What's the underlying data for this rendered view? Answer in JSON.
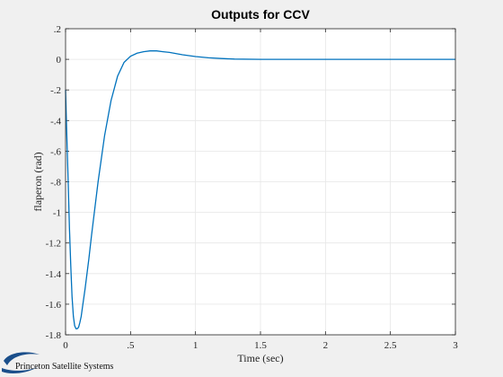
{
  "chart_data": {
    "type": "line",
    "title": "Outputs for CCV",
    "xlabel": "Time (sec)",
    "ylabel": "flaperon (rad)",
    "xlim": [
      0,
      3
    ],
    "ylim": [
      -1.8,
      0.2
    ],
    "xticks": [
      0,
      0.5,
      1,
      1.5,
      2,
      2.5,
      3
    ],
    "yticks": [
      -1.8,
      -1.6,
      -1.4,
      -1.2,
      -1,
      -0.8,
      -0.6,
      -0.4,
      -0.2,
      0,
      0.2
    ],
    "grid": true,
    "series": [
      {
        "color": "#0072bd",
        "x": [
          0,
          0.01,
          0.02,
          0.03,
          0.04,
          0.05,
          0.06,
          0.07,
          0.08,
          0.09,
          0.1,
          0.11,
          0.12,
          0.13,
          0.15,
          0.18,
          0.2,
          0.25,
          0.3,
          0.35,
          0.4,
          0.45,
          0.5,
          0.55,
          0.6,
          0.65,
          0.7,
          0.75,
          0.8,
          0.9,
          1.0,
          1.1,
          1.2,
          1.3,
          1.5,
          1.75,
          2.0,
          2.5,
          3.0
        ],
        "y": [
          -0.2,
          -0.5,
          -0.8,
          -1.1,
          -1.35,
          -1.55,
          -1.68,
          -1.74,
          -1.76,
          -1.76,
          -1.75,
          -1.72,
          -1.68,
          -1.62,
          -1.5,
          -1.3,
          -1.15,
          -0.8,
          -0.5,
          -0.27,
          -0.11,
          -0.02,
          0.02,
          0.04,
          0.05,
          0.055,
          0.055,
          0.05,
          0.045,
          0.03,
          0.018,
          0.01,
          0.005,
          0.002,
          0.0,
          0.0,
          0.0,
          0.0,
          0.0
        ]
      }
    ]
  },
  "logo": {
    "text": "Princeton Satellite Systems",
    "color": "#1a4e8a"
  }
}
